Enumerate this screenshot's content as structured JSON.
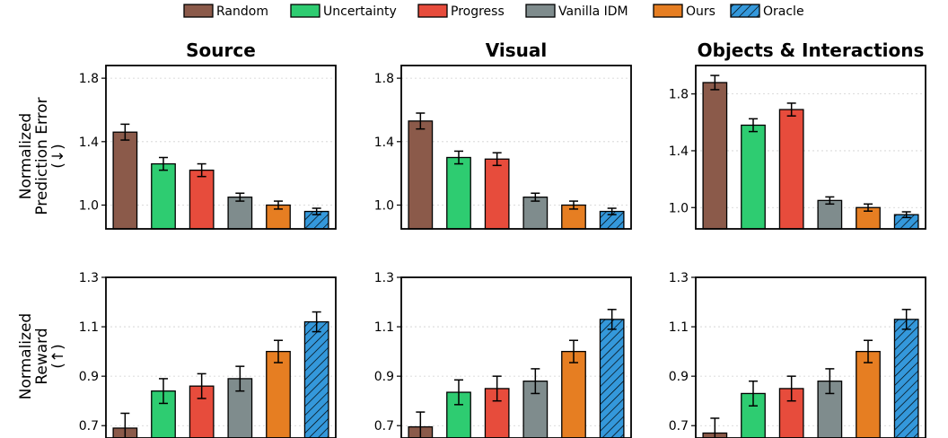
{
  "legend": {
    "placement": "top-center",
    "entries": [
      {
        "name": "Random",
        "color": "#8B5A4A",
        "hatch": false
      },
      {
        "name": "Uncertainty",
        "color": "#2ECC71",
        "hatch": false
      },
      {
        "name": "Progress",
        "color": "#E74C3C",
        "hatch": false
      },
      {
        "name": "Vanilla IDM",
        "color": "#7F8C8D",
        "hatch": false
      },
      {
        "name": "Ours",
        "color": "#E67E22",
        "hatch": false
      },
      {
        "name": "Oracle",
        "color": "#3498DB",
        "hatch": true
      }
    ]
  },
  "row_labels": {
    "error": [
      "Normalized",
      "Prediction Error",
      "(↓)"
    ],
    "reward": [
      "Normalized",
      "Reward",
      "(↑)"
    ]
  },
  "chart_data": [
    {
      "type": "bar",
      "title": "Source",
      "ylabel": "Normalized Prediction Error (↓)",
      "categories": [
        "Random",
        "Uncertainty",
        "Progress",
        "Vanilla IDM",
        "Ours",
        "Oracle"
      ],
      "values": [
        1.46,
        1.26,
        1.22,
        1.05,
        1.0,
        0.96
      ],
      "errors": [
        0.05,
        0.04,
        0.04,
        0.025,
        0.025,
        0.02
      ],
      "ylim": [
        0.85,
        1.88
      ],
      "yticks": [
        1.0,
        1.4,
        1.8
      ],
      "yticklabels": [
        "1.0",
        "1.4",
        "1.8"
      ],
      "grid": true
    },
    {
      "type": "bar",
      "title": "Visual",
      "ylabel": "",
      "categories": [
        "Random",
        "Uncertainty",
        "Progress",
        "Vanilla IDM",
        "Ours",
        "Oracle"
      ],
      "values": [
        1.53,
        1.3,
        1.29,
        1.05,
        1.0,
        0.96
      ],
      "errors": [
        0.05,
        0.04,
        0.04,
        0.025,
        0.025,
        0.02
      ],
      "ylim": [
        0.85,
        1.88
      ],
      "yticks": [
        1.0,
        1.4,
        1.8
      ],
      "yticklabels": [
        "1.0",
        "1.4",
        "1.8"
      ],
      "grid": true
    },
    {
      "type": "bar",
      "title": "Objects & Interactions",
      "ylabel": "",
      "categories": [
        "Random",
        "Uncertainty",
        "Progress",
        "Vanilla IDM",
        "Ours",
        "Oracle"
      ],
      "values": [
        1.88,
        1.58,
        1.69,
        1.05,
        1.0,
        0.95
      ],
      "errors": [
        0.05,
        0.045,
        0.045,
        0.025,
        0.025,
        0.02
      ],
      "ylim": [
        0.85,
        2.0
      ],
      "yticks": [
        1.0,
        1.4,
        1.8
      ],
      "yticklabels": [
        "1.0",
        "1.4",
        "1.8"
      ],
      "grid": true
    },
    {
      "type": "bar",
      "title": "",
      "ylabel": "Normalized Reward (↑)",
      "categories": [
        "Random",
        "Uncertainty",
        "Progress",
        "Vanilla IDM",
        "Ours",
        "Oracle"
      ],
      "values": [
        0.69,
        0.84,
        0.86,
        0.89,
        1.0,
        1.12
      ],
      "errors": [
        0.06,
        0.05,
        0.05,
        0.05,
        0.045,
        0.04
      ],
      "ylim": [
        0.65,
        1.3
      ],
      "yticks": [
        0.7,
        0.9,
        1.1,
        1.3
      ],
      "yticklabels": [
        "0.7",
        "0.9",
        "1.1",
        "1.3"
      ],
      "grid": true
    },
    {
      "type": "bar",
      "title": "",
      "ylabel": "",
      "categories": [
        "Random",
        "Uncertainty",
        "Progress",
        "Vanilla IDM",
        "Ours",
        "Oracle"
      ],
      "values": [
        0.695,
        0.835,
        0.85,
        0.88,
        1.0,
        1.13
      ],
      "errors": [
        0.06,
        0.05,
        0.05,
        0.05,
        0.045,
        0.04
      ],
      "ylim": [
        0.65,
        1.3
      ],
      "yticks": [
        0.7,
        0.9,
        1.1,
        1.3
      ],
      "yticklabels": [
        "0.7",
        "0.9",
        "1.1",
        "1.3"
      ],
      "grid": true
    },
    {
      "type": "bar",
      "title": "",
      "ylabel": "",
      "categories": [
        "Random",
        "Uncertainty",
        "Progress",
        "Vanilla IDM",
        "Ours",
        "Oracle"
      ],
      "values": [
        0.67,
        0.83,
        0.85,
        0.88,
        1.0,
        1.13
      ],
      "errors": [
        0.06,
        0.05,
        0.05,
        0.05,
        0.045,
        0.04
      ],
      "ylim": [
        0.65,
        1.3
      ],
      "yticks": [
        0.7,
        0.9,
        1.1,
        1.3
      ],
      "yticklabels": [
        "0.7",
        "0.9",
        "1.1",
        "1.3"
      ],
      "grid": true
    }
  ]
}
